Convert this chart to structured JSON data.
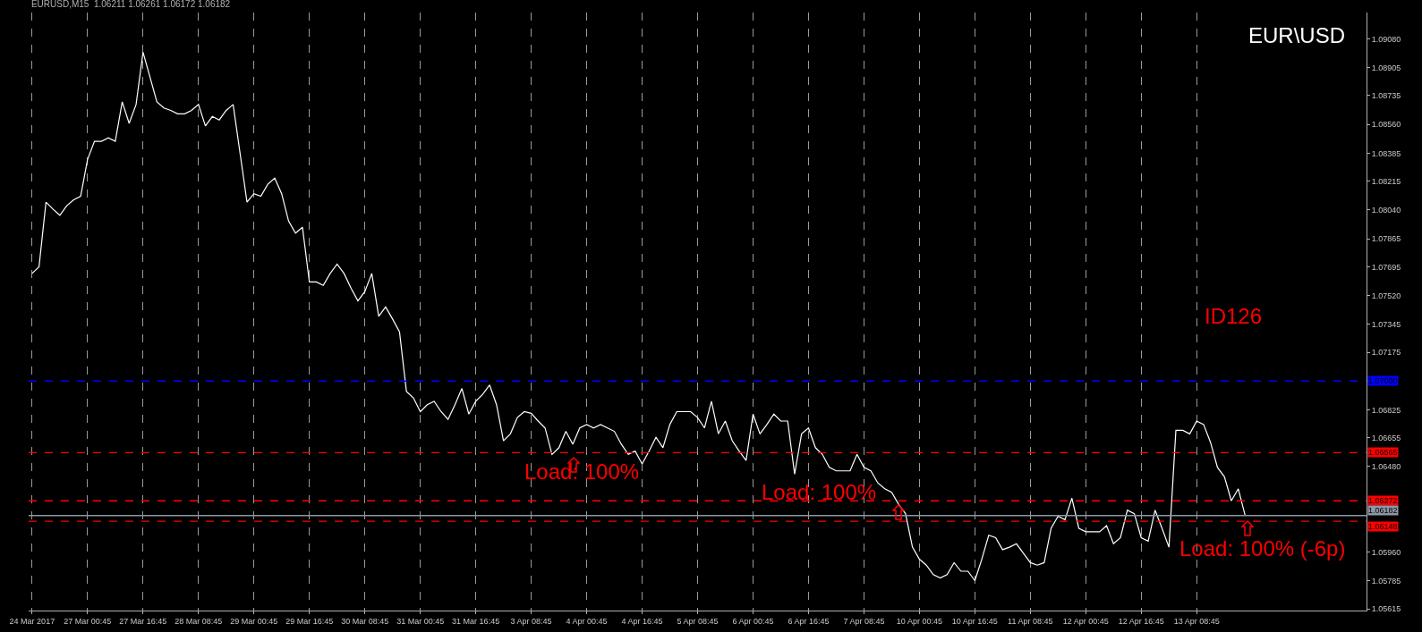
{
  "chart_data": {
    "type": "line",
    "title": "EURUSD,M15  1.06211 1.06261 1.06172 1.06182",
    "annotations": [
      "EUR\\USD",
      "ID126",
      "Load: 100%",
      "Load: 100%",
      "Load: 100% (-6p)"
    ],
    "categories": [
      "24 Mar 2017",
      null,
      null,
      null,
      null,
      null,
      null,
      null,
      "27 Mar 00:45",
      null,
      null,
      null,
      null,
      null,
      null,
      null,
      "27 Mar 16:45",
      null,
      null,
      null,
      null,
      null,
      null,
      null,
      "28 Mar 08:45",
      null,
      null,
      null,
      null,
      null,
      null,
      null,
      "29 Mar 00:45",
      null,
      null,
      null,
      null,
      null,
      null,
      null,
      "29 Mar 16:45",
      null,
      null,
      null,
      null,
      null,
      null,
      null,
      "30 Mar 08:45",
      null,
      null,
      null,
      null,
      null,
      null,
      null,
      "31 Mar 00:45",
      null,
      null,
      null,
      null,
      null,
      null,
      null,
      "31 Mar 16:45",
      null,
      null,
      null,
      null,
      null,
      null,
      null,
      "3 Apr 08:45",
      null,
      null,
      null,
      null,
      null,
      null,
      null,
      "4 Apr 00:45",
      null,
      null,
      null,
      null,
      null,
      null,
      null,
      "4 Apr 16:45",
      null,
      null,
      null,
      null,
      null,
      null,
      null,
      "5 Apr 08:45",
      null,
      null,
      null,
      null,
      null,
      null,
      null,
      "6 Apr 00:45",
      null,
      null,
      null,
      null,
      null,
      null,
      null,
      "6 Apr 16:45",
      null,
      null,
      null,
      null,
      null,
      null,
      null,
      "7 Apr 08:45",
      null,
      null,
      null,
      null,
      null,
      null,
      null,
      "10 Apr 00:45",
      null,
      null,
      null,
      null,
      null,
      null,
      null,
      "10 Apr 16:45",
      null,
      null,
      null,
      null,
      null,
      null,
      null,
      "11 Apr 08:45",
      null,
      null,
      null,
      null,
      null,
      null,
      null,
      "12 Apr 00:45",
      null,
      null,
      null,
      null,
      null,
      null,
      null,
      "12 Apr 16:45",
      null,
      null,
      null,
      null,
      null,
      null,
      null,
      "13 Apr 08:45",
      null,
      null,
      null,
      null,
      null,
      null,
      null,
      null,
      null,
      null,
      null,
      null,
      null,
      null,
      null,
      null,
      null,
      null,
      null,
      null,
      null,
      null,
      null,
      null
    ],
    "series": [
      {
        "color": "#ffffff",
        "values": [
          1.07654,
          1.07695,
          1.08087,
          1.08045,
          1.08008,
          1.08066,
          1.08102,
          1.08123,
          1.08347,
          1.08457,
          1.08457,
          1.08478,
          1.08457,
          1.08697,
          1.08566,
          1.08681,
          1.08999,
          1.08848,
          1.08697,
          1.0866,
          1.08645,
          1.08624,
          1.08624,
          1.08645,
          1.08681,
          1.08551,
          1.08608,
          1.08587,
          1.08645,
          1.08681,
          1.08384,
          1.08087,
          1.08139,
          1.08123,
          1.08196,
          1.08233,
          1.08139,
          1.07972,
          1.07899,
          1.07935,
          1.07602,
          1.07602,
          1.07581,
          1.07654,
          1.07711,
          1.07654,
          1.07565,
          1.07487,
          1.07544,
          1.07654,
          1.07393,
          1.0745,
          1.07377,
          1.07299,
          1.06937,
          1.06898,
          1.06814,
          1.06856,
          1.06877,
          1.06814,
          1.06767,
          1.06856,
          1.06955,
          1.06799,
          1.06877,
          1.06919,
          1.06976,
          1.06856,
          1.06637,
          1.06679,
          1.06778,
          1.06814,
          1.06804,
          1.06757,
          1.06715,
          1.06554,
          1.06595,
          1.06694,
          1.06616,
          1.06715,
          1.06736,
          1.06715,
          1.06736,
          1.06715,
          1.06694,
          1.06616,
          1.06554,
          1.06574,
          1.06496,
          1.06574,
          1.06658,
          1.06595,
          1.06736,
          1.06814,
          1.06814,
          1.06814,
          1.06778,
          1.06715,
          1.06877,
          1.06679,
          1.06757,
          1.06637,
          1.06574,
          1.06517,
          1.06799,
          1.06679,
          1.06736,
          1.06799,
          1.06757,
          1.06757,
          1.06434,
          1.06679,
          1.06715,
          1.06595,
          1.06554,
          1.06475,
          1.06454,
          1.06454,
          1.06454,
          1.06554,
          1.06475,
          1.06454,
          1.06381,
          1.06345,
          1.06324,
          1.06251,
          1.06194,
          1.0599,
          1.05917,
          1.05881,
          1.05823,
          1.05803,
          1.05823,
          1.05896,
          1.05844,
          1.05844,
          1.05787,
          1.05917,
          1.06063,
          1.06048,
          1.05975,
          1.0599,
          1.06011,
          1.05954,
          1.05896,
          1.05881,
          1.05896,
          1.06105,
          1.06178,
          1.06157,
          1.06288,
          1.06105,
          1.06084,
          1.06084,
          1.06084,
          1.06121,
          1.06011,
          1.06048,
          1.06215,
          1.06194,
          1.06048,
          1.06027,
          1.06215,
          1.06105,
          1.0599,
          1.067,
          1.067,
          1.06679,
          1.06757,
          1.06736,
          1.06627,
          1.06475,
          1.06418,
          1.06272,
          1.06345,
          1.06182,
          null,
          null,
          null,
          null,
          null,
          null,
          null,
          null,
          null,
          null,
          null,
          null,
          null,
          null,
          null,
          null,
          null
        ]
      }
    ],
    "ylim": [
      1.05605,
      1.0924
    ],
    "yticks": [
      {
        "value": 1.05615,
        "label": "1.05615"
      },
      {
        "value": 1.05785,
        "label": "1.05785"
      },
      {
        "value": 1.0596,
        "label": "1.05960"
      },
      {
        "value": 1.0648,
        "label": "1.06480"
      },
      {
        "value": 1.06655,
        "label": "1.06655"
      },
      {
        "value": 1.06825,
        "label": "1.06825"
      },
      {
        "value": 1.07175,
        "label": "1.07175"
      },
      {
        "value": 1.07345,
        "label": "1.07345"
      },
      {
        "value": 1.0752,
        "label": "1.07520"
      },
      {
        "value": 1.07695,
        "label": "1.07695"
      },
      {
        "value": 1.07865,
        "label": "1.07865"
      },
      {
        "value": 1.0804,
        "label": "1.08040"
      },
      {
        "value": 1.08215,
        "label": "1.08215"
      },
      {
        "value": 1.08385,
        "label": "1.08385"
      },
      {
        "value": 1.0856,
        "label": "1.08560"
      },
      {
        "value": 1.08735,
        "label": "1.08735"
      },
      {
        "value": 1.08905,
        "label": "1.08905"
      },
      {
        "value": 1.0908,
        "label": "1.09080"
      }
    ],
    "ref_lines": [
      {
        "axis": "y",
        "value": 1.07,
        "label": "1.07000",
        "color": "#0000ff",
        "line_style": "dashed"
      },
      {
        "axis": "y",
        "value": 1.06565,
        "label": "1.06565",
        "color": "#ff0000",
        "line_style": "dashed"
      },
      {
        "axis": "y",
        "value": 1.06272,
        "label": "1.06272",
        "color": "#ff0000",
        "line_style": "dashed"
      },
      {
        "axis": "y",
        "value": 1.06182,
        "label": "1.06182",
        "color": "#8c97a6",
        "line_style": "solid"
      },
      {
        "axis": "y",
        "value": 1.06148,
        "label": "1.06148",
        "color": "#ff0000",
        "line_style": "dashed"
      }
    ],
    "grid": "x",
    "marker": "none",
    "line_style": "solid"
  }
}
